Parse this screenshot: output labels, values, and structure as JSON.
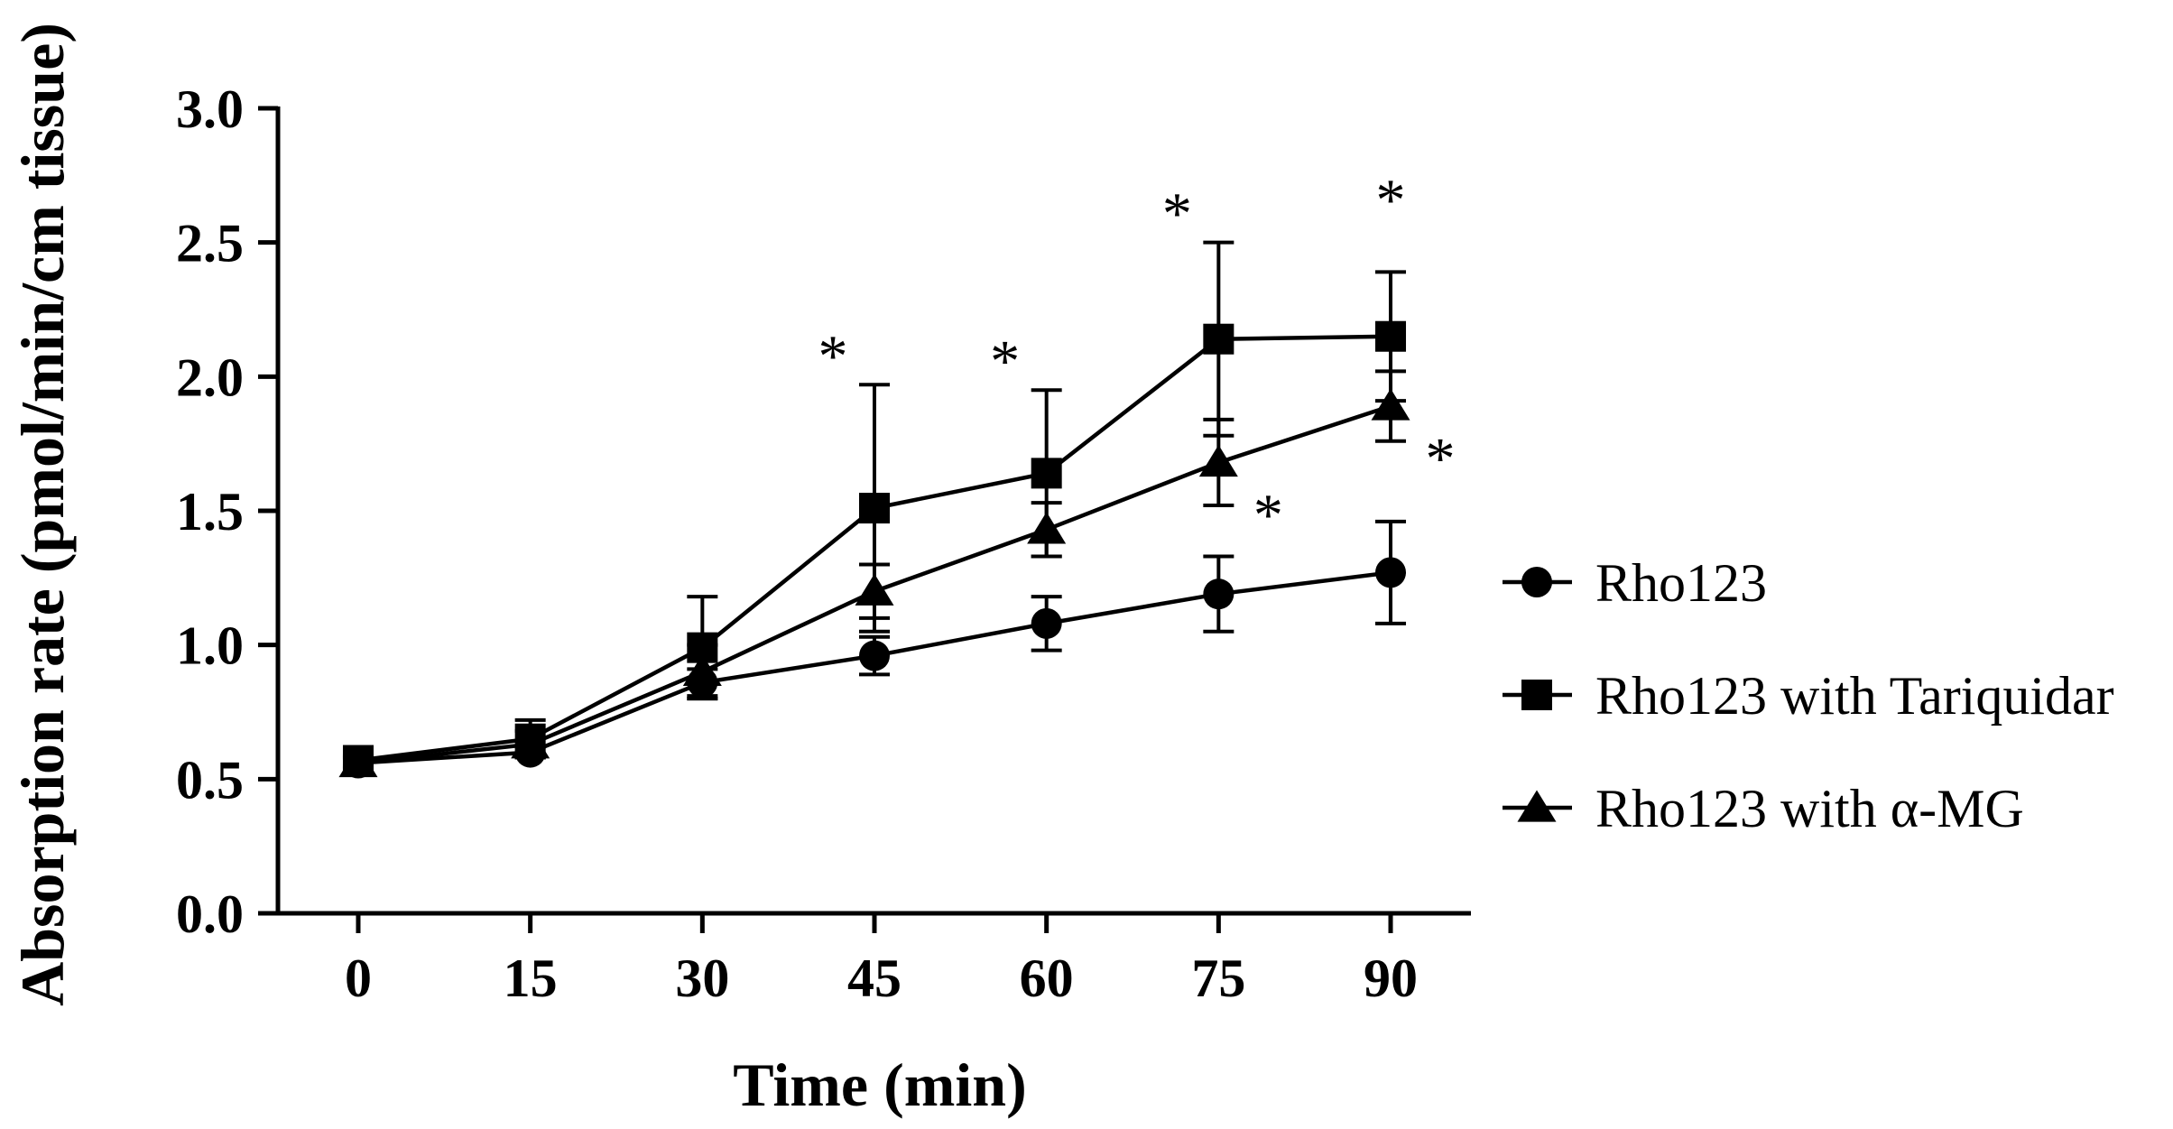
{
  "chart_data": {
    "type": "line",
    "title": "",
    "xlabel": "Time (min)",
    "ylabel": "Absorption rate (pmol/min/cm tissue)",
    "x": [
      0,
      15,
      30,
      45,
      60,
      75,
      90
    ],
    "x_tick_labels": [
      "0",
      "15",
      "30",
      "45",
      "60",
      "75",
      "90"
    ],
    "y_tick_labels": [
      "0.0",
      "0.5",
      "1.0",
      "1.5",
      "2.0",
      "2.5",
      "3.0"
    ],
    "xlim": [
      -7,
      97
    ],
    "ylim": [
      0,
      3.0
    ],
    "y_ticks": [
      0,
      0.5,
      1.0,
      1.5,
      2.0,
      2.5,
      3.0
    ],
    "legend_position": "right",
    "series": [
      {
        "name": "Rho123",
        "marker": "circle",
        "values": [
          0.56,
          0.6,
          0.86,
          0.96,
          1.08,
          1.19,
          1.27
        ],
        "error": [
          0.02,
          0.02,
          0.05,
          0.07,
          0.1,
          0.14,
          0.19
        ]
      },
      {
        "name": "Rho123 with Tariquidar",
        "marker": "square",
        "values": [
          0.57,
          0.65,
          0.99,
          1.51,
          1.64,
          2.14,
          2.15
        ],
        "error": [
          0.02,
          0.07,
          0.19,
          0.46,
          0.31,
          0.36,
          0.24
        ]
      },
      {
        "name": "Rho123 with α-MG",
        "marker": "triangle",
        "values": [
          0.56,
          0.63,
          0.9,
          1.2,
          1.43,
          1.68,
          1.89
        ],
        "error": [
          0.02,
          0.05,
          0.1,
          0.1,
          0.1,
          0.16,
          0.13
        ]
      }
    ],
    "annotations": [
      {
        "text": "*",
        "series": "Rho123 with Tariquidar",
        "x": 45
      },
      {
        "text": "*",
        "series": "Rho123 with Tariquidar",
        "x": 60
      },
      {
        "text": "*",
        "series": "Rho123 with Tariquidar",
        "x": 75
      },
      {
        "text": "*",
        "series": "Rho123 with Tariquidar",
        "x": 90
      },
      {
        "text": "*",
        "series": "Rho123 with α-MG",
        "x": 75
      },
      {
        "text": "*",
        "series": "Rho123 with α-MG",
        "x": 90
      }
    ]
  }
}
